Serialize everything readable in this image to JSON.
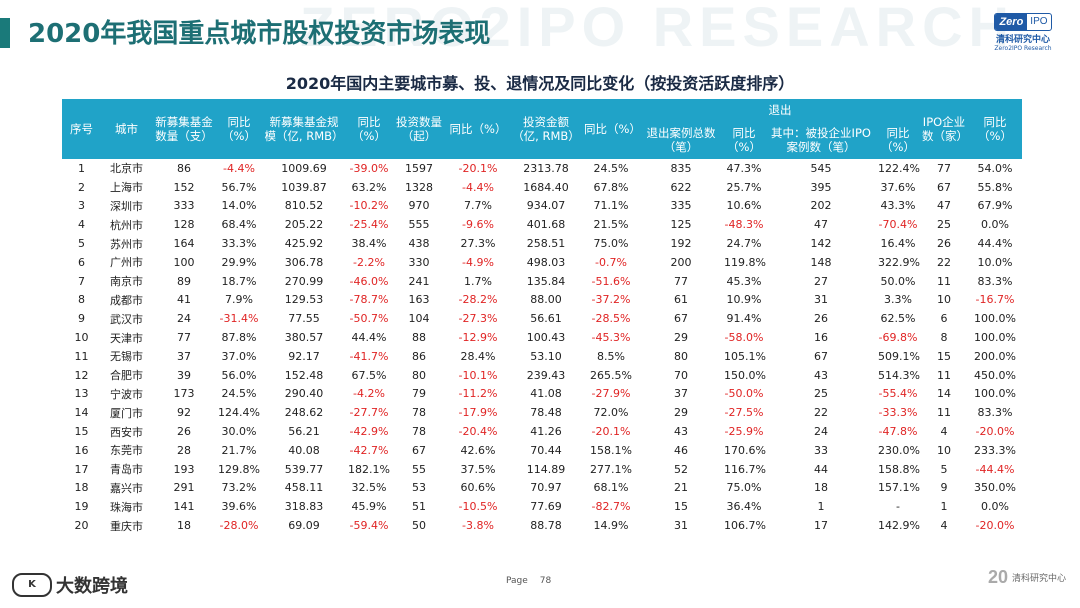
{
  "header": {
    "title": "2020年我国重点城市股权投资市场表现",
    "watermark": "ZERO2IPO RESEARCH",
    "logo_zero": "Zero",
    "logo_ipo": "IPO",
    "logo_cn": "清科研究中心",
    "logo_en": "Zero2IPO Research"
  },
  "subtitle": "2020年国内主要城市募、投、退情况及同比变化（按投资活跃度排序）",
  "table": {
    "group_exit": "退出",
    "headers": [
      "序号",
      "城市",
      "新募集基金数量（支）",
      "同比（%）",
      "新募集基金规模（亿, RMB）",
      "同比（%）",
      "投资数量（起）",
      "同比（%）",
      "投资金额（亿, RMB）",
      "同比（%）",
      "退出案例总数（笔）",
      "同比（%）",
      "其中：被投企业IPO案例数（笔）",
      "同比（%）",
      "IPO企业数（家）",
      "同比（%）"
    ],
    "rows": [
      [
        "1",
        "北京市",
        "86",
        "-4.4%",
        "1009.69",
        "-39.0%",
        "1597",
        "-20.1%",
        "2313.78",
        "24.5%",
        "835",
        "47.3%",
        "545",
        "122.4%",
        "77",
        "54.0%"
      ],
      [
        "2",
        "上海市",
        "152",
        "56.7%",
        "1039.87",
        "63.2%",
        "1328",
        "-4.4%",
        "1684.40",
        "67.8%",
        "622",
        "25.7%",
        "395",
        "37.6%",
        "67",
        "55.8%"
      ],
      [
        "3",
        "深圳市",
        "333",
        "14.0%",
        "810.52",
        "-10.2%",
        "970",
        "7.7%",
        "934.07",
        "71.1%",
        "335",
        "10.6%",
        "202",
        "43.3%",
        "47",
        "67.9%"
      ],
      [
        "4",
        "杭州市",
        "128",
        "68.4%",
        "205.22",
        "-25.4%",
        "555",
        "-9.6%",
        "401.68",
        "21.5%",
        "125",
        "-48.3%",
        "47",
        "-70.4%",
        "25",
        "0.0%"
      ],
      [
        "5",
        "苏州市",
        "164",
        "33.3%",
        "425.92",
        "38.4%",
        "438",
        "27.3%",
        "258.51",
        "75.0%",
        "192",
        "24.7%",
        "142",
        "16.4%",
        "26",
        "44.4%"
      ],
      [
        "6",
        "广州市",
        "100",
        "29.9%",
        "306.78",
        "-2.2%",
        "330",
        "-4.9%",
        "498.03",
        "-0.7%",
        "200",
        "119.8%",
        "148",
        "322.9%",
        "22",
        "10.0%"
      ],
      [
        "7",
        "南京市",
        "89",
        "18.7%",
        "270.99",
        "-46.0%",
        "241",
        "1.7%",
        "135.84",
        "-51.6%",
        "77",
        "45.3%",
        "27",
        "50.0%",
        "11",
        "83.3%"
      ],
      [
        "8",
        "成都市",
        "41",
        "7.9%",
        "129.53",
        "-78.7%",
        "163",
        "-28.2%",
        "88.00",
        "-37.2%",
        "61",
        "10.9%",
        "31",
        "3.3%",
        "10",
        "-16.7%"
      ],
      [
        "9",
        "武汉市",
        "24",
        "-31.4%",
        "77.55",
        "-50.7%",
        "104",
        "-27.3%",
        "56.61",
        "-28.5%",
        "67",
        "91.4%",
        "26",
        "62.5%",
        "6",
        "100.0%"
      ],
      [
        "10",
        "天津市",
        "77",
        "87.8%",
        "380.57",
        "44.4%",
        "88",
        "-12.9%",
        "100.43",
        "-45.3%",
        "29",
        "-58.0%",
        "16",
        "-69.8%",
        "8",
        "100.0%"
      ],
      [
        "11",
        "无锡市",
        "37",
        "37.0%",
        "92.17",
        "-41.7%",
        "86",
        "28.4%",
        "53.10",
        "8.5%",
        "80",
        "105.1%",
        "67",
        "509.1%",
        "15",
        "200.0%"
      ],
      [
        "12",
        "合肥市",
        "39",
        "56.0%",
        "152.48",
        "67.5%",
        "80",
        "-10.1%",
        "239.43",
        "265.5%",
        "70",
        "150.0%",
        "43",
        "514.3%",
        "11",
        "450.0%"
      ],
      [
        "13",
        "宁波市",
        "173",
        "24.5%",
        "290.40",
        "-4.2%",
        "79",
        "-11.2%",
        "41.08",
        "-27.9%",
        "37",
        "-50.0%",
        "25",
        "-55.4%",
        "14",
        "100.0%"
      ],
      [
        "14",
        "厦门市",
        "92",
        "124.4%",
        "248.62",
        "-27.7%",
        "78",
        "-17.9%",
        "78.48",
        "72.0%",
        "29",
        "-27.5%",
        "22",
        "-33.3%",
        "11",
        "83.3%"
      ],
      [
        "15",
        "西安市",
        "26",
        "30.0%",
        "56.21",
        "-42.9%",
        "78",
        "-20.4%",
        "41.26",
        "-20.1%",
        "43",
        "-25.9%",
        "24",
        "-47.8%",
        "4",
        "-20.0%"
      ],
      [
        "16",
        "东莞市",
        "28",
        "21.7%",
        "40.08",
        "-42.7%",
        "67",
        "42.6%",
        "70.44",
        "158.1%",
        "46",
        "170.6%",
        "33",
        "230.0%",
        "10",
        "233.3%"
      ],
      [
        "17",
        "青岛市",
        "193",
        "129.8%",
        "539.77",
        "182.1%",
        "55",
        "37.5%",
        "114.89",
        "277.1%",
        "52",
        "116.7%",
        "44",
        "158.8%",
        "5",
        "-44.4%"
      ],
      [
        "18",
        "嘉兴市",
        "291",
        "73.2%",
        "458.11",
        "32.5%",
        "53",
        "60.6%",
        "70.97",
        "68.1%",
        "21",
        "75.0%",
        "18",
        "157.1%",
        "9",
        "350.0%"
      ],
      [
        "19",
        "珠海市",
        "141",
        "39.6%",
        "318.83",
        "45.9%",
        "51",
        "-10.5%",
        "77.69",
        "-82.7%",
        "15",
        "36.4%",
        "1",
        "-",
        "1",
        "0.0%"
      ],
      [
        "20",
        "重庆市",
        "18",
        "-28.0%",
        "69.09",
        "-59.4%",
        "50",
        "-3.8%",
        "88.78",
        "14.9%",
        "31",
        "106.7%",
        "17",
        "142.9%",
        "4",
        "-20.0%"
      ]
    ]
  },
  "footer": {
    "brand": "大数跨境",
    "brand_mark": "K",
    "page_label": "Page",
    "page_number": "78",
    "right_mark": "20",
    "right_text": "清科研究中心"
  }
}
